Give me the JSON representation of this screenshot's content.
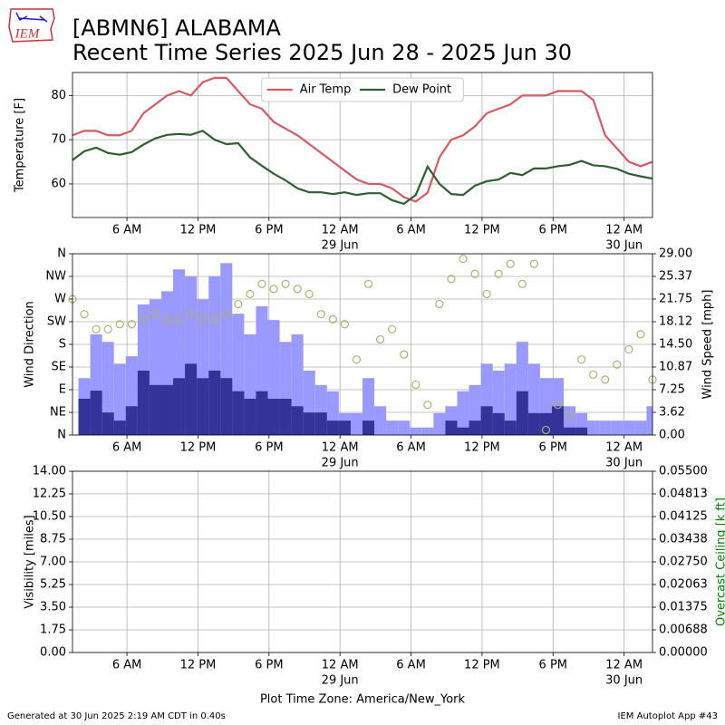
{
  "logo": "IEM",
  "title": "[ABMN6] ALABAMA",
  "subtitle": "Recent Time Series 2025 Jun 28 - 2025 Jun 30",
  "x_axis_label": "Plot Time Zone: America/New_York",
  "footer_left": "Generated at 30 Jun 2025 2:19 AM CDT in 0.40s",
  "footer_right": "IEM Autoplot App #43",
  "chart_data": [
    {
      "type": "line",
      "ylabel": "Temperature [F]",
      "grid": true,
      "legend": "upper center",
      "xlim": [
        1.4,
        50.4
      ],
      "xticks": [
        {
          "value": 6,
          "label": "6 AM"
        },
        {
          "value": 12,
          "label": "12 PM"
        },
        {
          "value": 18,
          "label": "6 PM"
        },
        {
          "value": 24,
          "label": "12 AM",
          "sublabel": "29 Jun"
        },
        {
          "value": 30,
          "label": "6 AM"
        },
        {
          "value": 36,
          "label": "12 PM"
        },
        {
          "value": 42,
          "label": "6 PM"
        },
        {
          "value": 48,
          "label": "12 AM",
          "sublabel": "30 Jun"
        }
      ],
      "ylim": [
        52.4,
        85.2
      ],
      "yticks": [
        60,
        70,
        80
      ],
      "x": [
        1.4,
        2.4,
        3.4,
        4.4,
        5.4,
        6.4,
        7.4,
        8.4,
        9.4,
        10.4,
        11.4,
        12.4,
        13.4,
        14.4,
        15.4,
        16.4,
        17.4,
        18.4,
        19.4,
        20.4,
        21.4,
        22.4,
        23.4,
        24.4,
        25.4,
        26.4,
        27.4,
        28.4,
        29.4,
        30.4,
        31.4,
        32.4,
        33.4,
        34.4,
        35.4,
        36.4,
        37.4,
        38.4,
        39.4,
        40.4,
        41.4,
        42.4,
        43.4,
        44.4,
        45.4,
        46.4,
        47.4,
        48.4,
        49.4,
        50.4
      ],
      "series": [
        {
          "name": "Air Temp",
          "type": "line",
          "color": "#d9595f",
          "values": [
            71,
            72,
            72,
            71,
            71,
            72,
            76,
            78,
            80,
            81,
            80,
            83,
            84,
            84,
            81,
            78,
            77,
            74,
            72.5,
            71,
            69,
            67,
            65,
            63,
            61,
            60,
            60,
            59,
            57,
            56,
            58,
            66,
            70,
            71,
            73,
            76,
            77,
            78,
            80,
            80,
            80,
            81,
            81,
            81,
            79,
            71,
            68,
            65,
            64,
            65
          ]
        },
        {
          "name": "Dew Point",
          "type": "line",
          "color": "#2f5f30",
          "values": [
            65.4,
            67.4,
            68.2,
            67,
            66.6,
            67.2,
            68.9,
            70.3,
            71.1,
            71.3,
            71.1,
            72,
            70,
            69,
            69.2,
            66,
            64.1,
            62.3,
            60.8,
            59,
            58.1,
            58.1,
            57.7,
            58.1,
            57.5,
            57.9,
            57.9,
            56.3,
            55.5,
            57.5,
            63.9,
            60,
            57.7,
            57.5,
            59.6,
            60.6,
            61,
            62.5,
            62,
            63.5,
            63.5,
            64,
            64.3,
            65.2,
            64.2,
            64,
            63.4,
            62.3,
            61.7,
            61.2
          ]
        }
      ]
    },
    {
      "type": "bar",
      "ylabel": "Wind Direction",
      "y2label": "Wind Speed [mph]",
      "grid": true,
      "xlim": [
        1.4,
        50.4
      ],
      "xticks": [
        {
          "value": 6,
          "label": "6 AM"
        },
        {
          "value": 12,
          "label": "12 PM"
        },
        {
          "value": 18,
          "label": "6 PM"
        },
        {
          "value": 24,
          "label": "12 AM",
          "sublabel": "29 Jun"
        },
        {
          "value": 30,
          "label": "6 AM"
        },
        {
          "value": 36,
          "label": "12 PM"
        },
        {
          "value": 42,
          "label": "6 PM"
        },
        {
          "value": 48,
          "label": "12 AM",
          "sublabel": "30 Jun"
        }
      ],
      "ylim": [
        0,
        360
      ],
      "yticks": [
        {
          "value": 0,
          "label": "N"
        },
        {
          "value": 45,
          "label": "NE"
        },
        {
          "value": 90,
          "label": "E"
        },
        {
          "value": 135,
          "label": "SE"
        },
        {
          "value": 180,
          "label": "S"
        },
        {
          "value": 225,
          "label": "SW"
        },
        {
          "value": 270,
          "label": "W"
        },
        {
          "value": 315,
          "label": "NW"
        },
        {
          "value": 360,
          "label": "N"
        }
      ],
      "y2lim": [
        0,
        29
      ],
      "y2ticks": [
        {
          "value": 0,
          "label": "0.00"
        },
        {
          "value": 3.625,
          "label": "3.62"
        },
        {
          "value": 7.25,
          "label": "7.25"
        },
        {
          "value": 10.875,
          "label": "10.87"
        },
        {
          "value": 14.5,
          "label": "14.50"
        },
        {
          "value": 18.125,
          "label": "18.12"
        },
        {
          "value": 21.75,
          "label": "21.75"
        },
        {
          "value": 25.375,
          "label": "25.37"
        },
        {
          "value": 29,
          "label": "29.00"
        }
      ],
      "series": [
        {
          "type": "bar",
          "axis": "y2",
          "color": "#9999ff",
          "x": [
            2.4,
            3.4,
            4.4,
            5.4,
            6.4,
            7.4,
            8.4,
            9.4,
            10.4,
            11.4,
            12.4,
            13.4,
            14.4,
            15.4,
            16.4,
            17.4,
            18.4,
            19.4,
            20.4,
            21.4,
            22.4,
            23.4,
            24.4,
            25.4,
            26.4,
            27.4,
            28.4,
            29.4,
            30.4,
            31.4,
            32.4,
            33.4,
            34.4,
            35.4,
            36.4,
            37.4,
            38.4,
            39.4,
            40.4,
            41.4,
            42.4,
            43.4,
            44.4,
            45.4,
            46.4,
            47.4,
            48.4,
            49.4,
            50.4
          ],
          "values": [
            9.1,
            16.1,
            14.9,
            11.4,
            12.6,
            20.9,
            21.7,
            23,
            26.5,
            25.4,
            21.7,
            25.4,
            27.5,
            19.4,
            16.1,
            20.6,
            18.4,
            14.9,
            16.1,
            10.3,
            8,
            7,
            3.5,
            3.5,
            9.1,
            4.6,
            2.3,
            2.3,
            1.2,
            1.2,
            3.5,
            4.6,
            7,
            8,
            11.4,
            10.3,
            11.4,
            14.9,
            11.4,
            9.1,
            9.1,
            4.6,
            3.5,
            2.3,
            2.3,
            2.3,
            2.3,
            2.3,
            4.6
          ]
        },
        {
          "type": "bar",
          "axis": "y2",
          "color": "#333399",
          "x": [
            2.4,
            3.4,
            4.4,
            5.4,
            6.4,
            7.4,
            8.4,
            9.4,
            10.4,
            11.4,
            12.4,
            13.4,
            14.4,
            15.4,
            16.4,
            17.4,
            18.4,
            19.4,
            20.4,
            21.4,
            22.4,
            23.4,
            24.4,
            25.4,
            26.4,
            27.4,
            28.4,
            29.4,
            30.4,
            31.4,
            32.4,
            33.4,
            34.4,
            35.4,
            36.4,
            37.4,
            38.4,
            39.4,
            40.4,
            41.4,
            42.4,
            43.4,
            44.4,
            45.4,
            46.4,
            47.4,
            48.4,
            49.4,
            50.4
          ],
          "values": [
            5.8,
            7.1,
            3.6,
            2.3,
            4.6,
            10.3,
            8,
            8,
            9.1,
            11.4,
            9.1,
            10.3,
            9.1,
            7,
            5.8,
            7,
            5.8,
            5.8,
            4.6,
            3.6,
            3.6,
            2.3,
            2.3,
            0,
            2.3,
            0,
            0,
            0,
            0,
            0,
            0,
            2.3,
            1.2,
            2.3,
            4.6,
            3.5,
            2.3,
            7,
            3.5,
            3.5,
            4.6,
            1.2,
            1.2,
            0,
            0,
            0,
            0,
            0,
            0
          ]
        },
        {
          "type": "scatter",
          "axis": "y",
          "color": "#b0b070",
          "x": [
            1.4,
            2.4,
            3.4,
            4.4,
            5.4,
            6.4,
            7.4,
            8.4,
            9.4,
            10.4,
            11.4,
            12.4,
            13.4,
            14.4,
            15.4,
            16.4,
            17.4,
            18.4,
            19.4,
            20.4,
            21.4,
            22.4,
            23.4,
            24.4,
            25.4,
            26.4,
            27.4,
            28.4,
            29.4,
            30.4,
            31.4,
            32.4,
            33.4,
            34.4,
            35.4,
            36.4,
            37.4,
            38.4,
            39.4,
            40.4,
            41.4,
            42.4,
            43.4,
            44.4,
            45.4,
            46.4,
            47.4,
            48.4,
            49.4,
            50.4
          ],
          "values": [
            270,
            240,
            210,
            210,
            220,
            220,
            230,
            240,
            230,
            230,
            240,
            230,
            230,
            240,
            260,
            280,
            300,
            290,
            300,
            290,
            280,
            240,
            230,
            220,
            150,
            300,
            190,
            210,
            160,
            100,
            60,
            260,
            310,
            350,
            320,
            280,
            320,
            340,
            300,
            340,
            10,
            60,
            40,
            150,
            120,
            110,
            140,
            170,
            200,
            110
          ]
        }
      ]
    },
    {
      "type": "line",
      "ylabel": "Visibility [miles]",
      "y2label": "Overcast Ceiling [k ft]",
      "y2label_color": "#008000",
      "grid": true,
      "xlim": [
        1.4,
        50.4
      ],
      "xticks": [
        {
          "value": 6,
          "label": "6 AM"
        },
        {
          "value": 12,
          "label": "12 PM"
        },
        {
          "value": 18,
          "label": "6 PM"
        },
        {
          "value": 24,
          "label": "12 AM",
          "sublabel": "29 Jun"
        },
        {
          "value": 30,
          "label": "6 AM"
        },
        {
          "value": 36,
          "label": "12 PM"
        },
        {
          "value": 42,
          "label": "6 PM"
        },
        {
          "value": 48,
          "label": "12 AM",
          "sublabel": "30 Jun"
        }
      ],
      "ylim": [
        0,
        14
      ],
      "yticks": [
        {
          "value": 0,
          "label": "0.00"
        },
        {
          "value": 1.75,
          "label": "1.75"
        },
        {
          "value": 3.5,
          "label": "3.50"
        },
        {
          "value": 5.25,
          "label": "5.25"
        },
        {
          "value": 7,
          "label": "7.00"
        },
        {
          "value": 8.75,
          "label": "8.75"
        },
        {
          "value": 10.5,
          "label": "10.50"
        },
        {
          "value": 12.25,
          "label": "12.25"
        },
        {
          "value": 14,
          "label": "14.00"
        }
      ],
      "y2lim": [
        0,
        0.055
      ],
      "y2ticks": [
        {
          "value": 0,
          "label": "0.00000"
        },
        {
          "value": 0.006875,
          "label": "0.00688"
        },
        {
          "value": 0.01375,
          "label": "0.01375"
        },
        {
          "value": 0.020625,
          "label": "0.02063"
        },
        {
          "value": 0.0275,
          "label": "0.02750"
        },
        {
          "value": 0.034375,
          "label": "0.03438"
        },
        {
          "value": 0.04125,
          "label": "0.04125"
        },
        {
          "value": 0.048125,
          "label": "0.04813"
        },
        {
          "value": 0.055,
          "label": "0.05500"
        }
      ],
      "series": []
    }
  ]
}
